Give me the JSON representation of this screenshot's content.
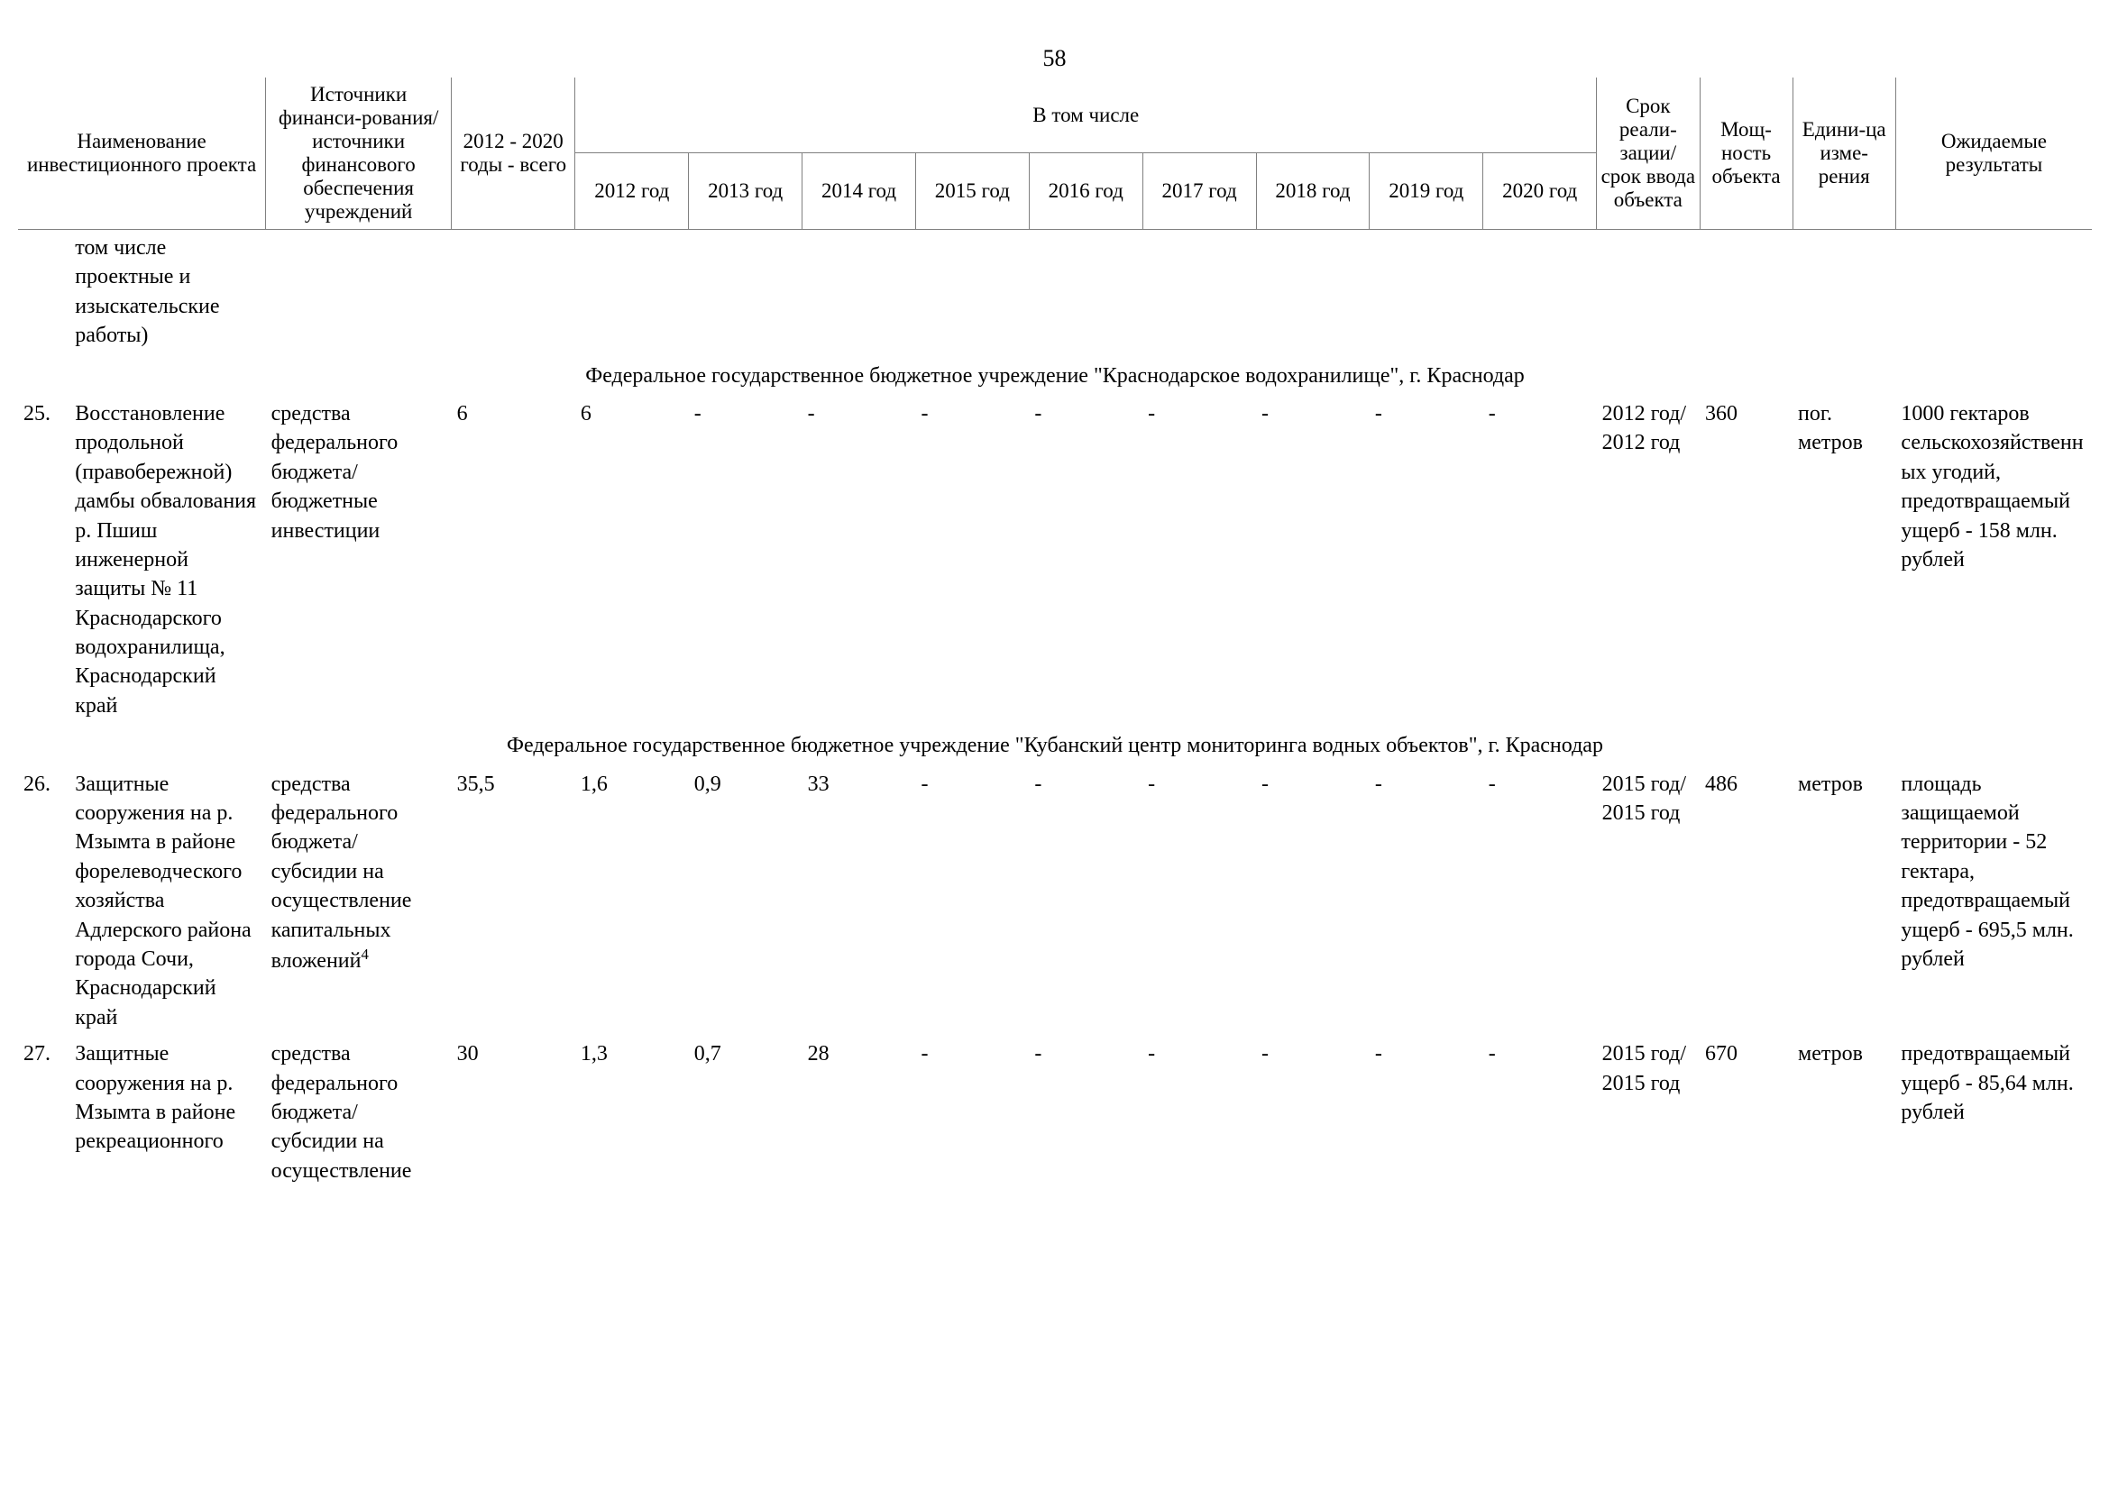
{
  "page_number": "58",
  "header": {
    "col_name": "Наименование инвестиционного проекта",
    "col_source": "Источники финанси-рования/источники финансового обеспечения учреждений",
    "col_total": "2012 - 2020 годы - всего",
    "col_group_years": "В том числе",
    "years": {
      "y2012": "2012 год",
      "y2013": "2013 год",
      "y2014": "2014 год",
      "y2015": "2015 год",
      "y2016": "2016 год",
      "y2017": "2017 год",
      "y2018": "2018 год",
      "y2019": "2019 год",
      "y2020": "2020 год"
    },
    "col_srok": "Срок реали-зации/срок ввода объекта",
    "col_power": "Мощ-ность объекта",
    "col_unit": "Едини-ца изме-рения",
    "col_result": "Ожидаемые результаты"
  },
  "continuation": {
    "name": "том числе проектные и изыскательские работы)"
  },
  "group1": "Федеральное государственное бюджетное учреждение \"Краснодарское водохранилище\", г. Краснодар",
  "row25": {
    "idx": "25.",
    "name": "Восстановление продольной (правобережной) дамбы обвалования р. Пшиш инженерной защиты № 11 Краснодарского водохранилища, Краснодарский край",
    "source": "средства федерального бюджета/ бюджетные инвестиции",
    "total": "6",
    "y2012": "6",
    "y2013": "-",
    "y2014": "-",
    "y2015": "-",
    "y2016": "-",
    "y2017": "-",
    "y2018": "-",
    "y2019": "-",
    "y2020": "-",
    "srok": "2012 год/ 2012 год",
    "power": "360",
    "unit": "пог. метров",
    "result": "1000 гектаров сельскохозяйственных угодий, предотвращаемый ущерб - 158 млн. рублей"
  },
  "group2": "Федеральное государственное бюджетное учреждение \"Кубанский центр мониторинга водных объектов\", г. Краснодар",
  "row26": {
    "idx": "26.",
    "name": "Защитные сооружения на р. Мзымта в районе форелеводческого хозяйства Адлерского района города Сочи, Краснодарский край",
    "source_pre": "средства федерального бюджета/ субсидии на осуществление капитальных вложений",
    "source_sup": "4",
    "total": "35,5",
    "y2012": "1,6",
    "y2013": "0,9",
    "y2014": "33",
    "y2015": "-",
    "y2016": "-",
    "y2017": "-",
    "y2018": "-",
    "y2019": "-",
    "y2020": "-",
    "srok": "2015 год/ 2015 год",
    "power": "486",
    "unit": "метров",
    "result": "площадь защищаемой территории - 52 гектара, предотвращаемый ущерб - 695,5 млн. рублей"
  },
  "row27": {
    "idx": "27.",
    "name": "Защитные сооружения на р. Мзымта в районе рекреационного",
    "source": "средства федерального бюджета/ субсидии на осуществление",
    "total": "30",
    "y2012": "1,3",
    "y2013": "0,7",
    "y2014": "28",
    "y2015": "-",
    "y2016": "-",
    "y2017": "-",
    "y2018": "-",
    "y2019": "-",
    "y2020": "-",
    "srok": "2015 год/ 2015 год",
    "power": "670",
    "unit": "метров",
    "result": "предотвращаемый ущерб - 85,64 млн. рублей"
  }
}
